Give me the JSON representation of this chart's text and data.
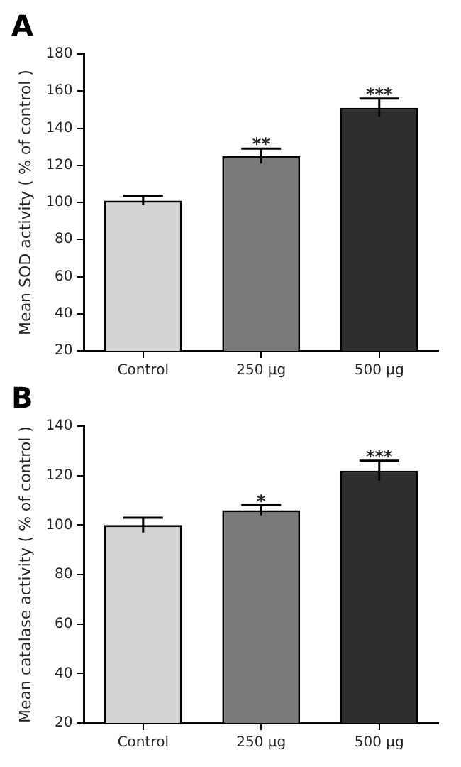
{
  "chart_data": [
    {
      "type": "bar",
      "title": "A",
      "ylabel": "Mean SOD activity ( % of control )",
      "categories": [
        "Control",
        "250 µg",
        "500 µg"
      ],
      "values": [
        101,
        125,
        151
      ],
      "errors": [
        2.5,
        4,
        5
      ],
      "colors": [
        "#d4d4d4",
        "#7a7a7a",
        "#2e2e2e"
      ],
      "ylim": [
        20,
        180
      ],
      "yticks": [
        20,
        40,
        60,
        80,
        100,
        120,
        140,
        160,
        180
      ],
      "grid": false,
      "legend": false,
      "annotations": [
        {
          "text": "**",
          "x": "250 µg",
          "y": 129
        },
        {
          "text": "***",
          "x": "500 µg",
          "y": 156
        }
      ]
    },
    {
      "type": "bar",
      "title": "B",
      "ylabel": "Mean catalase activity ( % of control )",
      "categories": [
        "Control",
        "250 µg",
        "500 µg"
      ],
      "values": [
        100,
        106,
        122
      ],
      "errors": [
        3,
        2,
        4
      ],
      "colors": [
        "#d4d4d4",
        "#7a7a7a",
        "#2e2e2e"
      ],
      "ylim": [
        20,
        140
      ],
      "yticks": [
        20,
        40,
        60,
        80,
        100,
        120,
        140
      ],
      "grid": false,
      "legend": false,
      "annotations": [
        {
          "text": "*",
          "x": "250 µg",
          "y": 108
        },
        {
          "text": "***",
          "x": "500 µg",
          "y": 126
        }
      ]
    }
  ]
}
